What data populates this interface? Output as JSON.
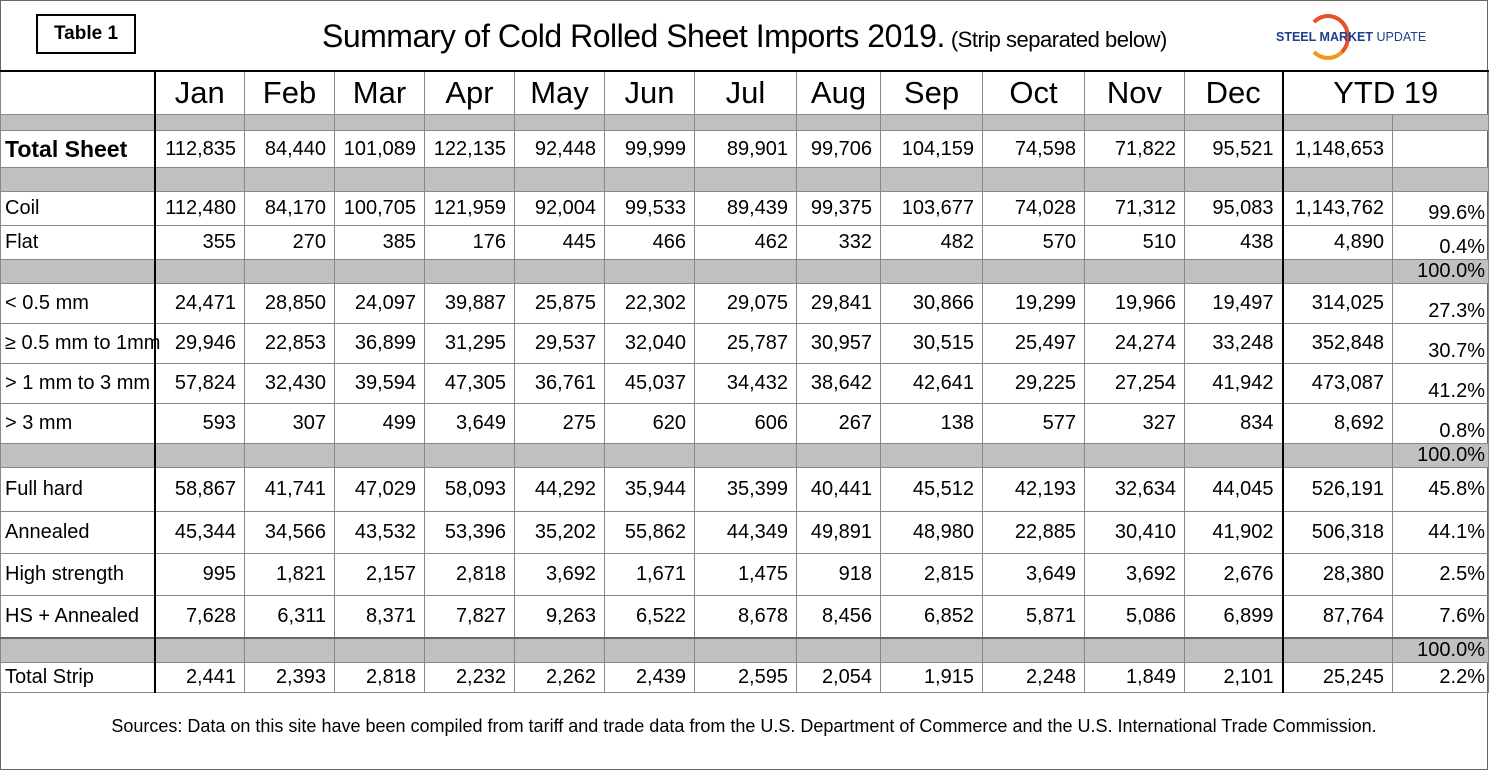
{
  "table_tag": "Table 1",
  "title": "Summary of Cold Rolled Sheet Imports 2019.",
  "subtitle": "(Strip separated below)",
  "logo": {
    "bold": "STEEL MARKET",
    "light": "UPDATE",
    "colors": {
      "brand": "#1f3f8c",
      "arc": "#e8502a"
    }
  },
  "footer": "Sources: Data on this site have been compiled from tariff and trade data from the U.S. Department of Commerce and the U.S. International Trade Commission.",
  "chart_data": {
    "type": "table",
    "title": "Summary of Cold Rolled Sheet Imports 2019.",
    "columns": [
      "Jan",
      "Feb",
      "Mar",
      "Apr",
      "May",
      "Jun",
      "Jul",
      "Aug",
      "Sep",
      "Oct",
      "Nov",
      "Dec"
    ],
    "ytd_label": "YTD 19",
    "rows": [
      {
        "kind": "gray",
        "pct": ""
      },
      {
        "kind": "data",
        "bold": true,
        "label": "Total Sheet",
        "values": [
          "112,835",
          "84,440",
          "101,089",
          "122,135",
          "92,448",
          "99,999",
          "89,901",
          "99,706",
          "104,159",
          "74,598",
          "71,822",
          "95,521"
        ],
        "ytd": "1,148,653",
        "pct": ""
      },
      {
        "kind": "gray",
        "pct": ""
      },
      {
        "kind": "data",
        "label": "Coil",
        "values": [
          "112,480",
          "84,170",
          "100,705",
          "121,959",
          "92,004",
          "99,533",
          "89,439",
          "99,375",
          "103,677",
          "74,028",
          "71,312",
          "95,083"
        ],
        "ytd": "1,143,762",
        "pct": "99.6%"
      },
      {
        "kind": "data",
        "label": "Flat",
        "values": [
          "355",
          "270",
          "385",
          "176",
          "445",
          "466",
          "462",
          "332",
          "482",
          "570",
          "510",
          "438"
        ],
        "ytd": "4,890",
        "pct": "0.4%"
      },
      {
        "kind": "gray",
        "pct": "100.0%"
      },
      {
        "kind": "data",
        "label": "< 0.5 mm",
        "values": [
          "24,471",
          "28,850",
          "24,097",
          "39,887",
          "25,875",
          "22,302",
          "29,075",
          "29,841",
          "30,866",
          "19,299",
          "19,966",
          "19,497"
        ],
        "ytd": "314,025",
        "pct": "27.3%"
      },
      {
        "kind": "data",
        "label": "≥ 0.5 mm to 1mm",
        "values": [
          "29,946",
          "22,853",
          "36,899",
          "31,295",
          "29,537",
          "32,040",
          "25,787",
          "30,957",
          "30,515",
          "25,497",
          "24,274",
          "33,248"
        ],
        "ytd": "352,848",
        "pct": "30.7%"
      },
      {
        "kind": "data",
        "label": "> 1 mm to 3 mm",
        "values": [
          "57,824",
          "32,430",
          "39,594",
          "47,305",
          "36,761",
          "45,037",
          "34,432",
          "38,642",
          "42,641",
          "29,225",
          "27,254",
          "41,942"
        ],
        "ytd": "473,087",
        "pct": "41.2%"
      },
      {
        "kind": "data",
        "label": "> 3 mm",
        "values": [
          "593",
          "307",
          "499",
          "3,649",
          "275",
          "620",
          "606",
          "267",
          "138",
          "577",
          "327",
          "834"
        ],
        "ytd": "8,692",
        "pct": "0.8%"
      },
      {
        "kind": "gray",
        "pct": "100.0%"
      },
      {
        "kind": "data",
        "mid": true,
        "label": "Full hard",
        "values": [
          "58,867",
          "41,741",
          "47,029",
          "58,093",
          "44,292",
          "35,944",
          "35,399",
          "40,441",
          "45,512",
          "42,193",
          "32,634",
          "44,045"
        ],
        "ytd": "526,191",
        "pct": "45.8%"
      },
      {
        "kind": "data",
        "mid": true,
        "label": "Annealed",
        "values": [
          "45,344",
          "34,566",
          "43,532",
          "53,396",
          "35,202",
          "55,862",
          "44,349",
          "49,891",
          "48,980",
          "22,885",
          "30,410",
          "41,902"
        ],
        "ytd": "506,318",
        "pct": "44.1%"
      },
      {
        "kind": "data",
        "mid": true,
        "label": "High strength",
        "values": [
          "995",
          "1,821",
          "2,157",
          "2,818",
          "3,692",
          "1,671",
          "1,475",
          "918",
          "2,815",
          "3,649",
          "3,692",
          "2,676"
        ],
        "ytd": "28,380",
        "pct": "2.5%"
      },
      {
        "kind": "data",
        "mid": true,
        "label": "HS + Annealed",
        "values": [
          "7,628",
          "6,311",
          "8,371",
          "7,827",
          "9,263",
          "6,522",
          "8,678",
          "8,456",
          "6,852",
          "5,871",
          "5,086",
          "6,899"
        ],
        "ytd": "87,764",
        "pct": "7.6%"
      },
      {
        "kind": "gray",
        "strip": true,
        "pct": "100.0%"
      },
      {
        "kind": "data",
        "mid": true,
        "label": "Total Strip",
        "values": [
          "2,441",
          "2,393",
          "2,818",
          "2,232",
          "2,262",
          "2,439",
          "2,595",
          "2,054",
          "1,915",
          "2,248",
          "1,849",
          "2,101"
        ],
        "ytd": "25,245",
        "pct": "2.2%"
      }
    ]
  }
}
